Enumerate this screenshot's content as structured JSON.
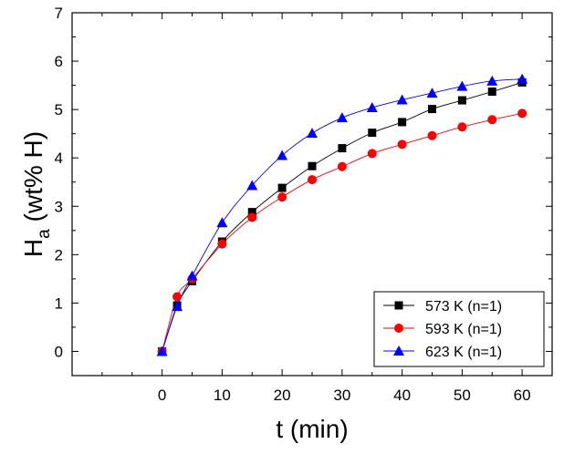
{
  "chart_data": {
    "type": "line",
    "xlabel": "t (min)",
    "ylabel_main": "H",
    "ylabel_sub": "a",
    "ylabel_rest": " (wt% H)",
    "xlim": [
      -15,
      65
    ],
    "ylim": [
      -0.5,
      7
    ],
    "xticks": [
      0,
      10,
      20,
      30,
      40,
      50,
      60
    ],
    "yticks": [
      0,
      1,
      2,
      3,
      4,
      5,
      6,
      7
    ],
    "legend_position": "bottom-right",
    "series": [
      {
        "name": "573 K (n=1)",
        "color": "#000000",
        "marker": "square",
        "x": [
          0,
          2.5,
          5,
          10,
          15,
          20,
          25,
          30,
          35,
          40,
          45,
          50,
          55,
          60
        ],
        "y": [
          0,
          0.95,
          1.45,
          2.27,
          2.88,
          3.38,
          3.83,
          4.2,
          4.52,
          4.74,
          5.01,
          5.19,
          5.37,
          5.56
        ]
      },
      {
        "name": "593 K (n=1)",
        "color": "#ff0000",
        "marker": "circle",
        "x": [
          0,
          2.5,
          5,
          10,
          15,
          20,
          25,
          30,
          35,
          40,
          45,
          50,
          55,
          60
        ],
        "y": [
          0,
          1.13,
          1.5,
          2.22,
          2.77,
          3.19,
          3.55,
          3.82,
          4.09,
          4.28,
          4.46,
          4.64,
          4.79,
          4.92
        ]
      },
      {
        "name": "623 K (n=1)",
        "color": "#0000ff",
        "marker": "triangle",
        "x": [
          0,
          2.5,
          5,
          10,
          15,
          20,
          25,
          30,
          35,
          40,
          45,
          50,
          55,
          60
        ],
        "y": [
          0,
          0.93,
          1.56,
          2.66,
          3.43,
          4.05,
          4.51,
          4.83,
          5.04,
          5.2,
          5.34,
          5.48,
          5.59,
          5.63
        ]
      }
    ]
  }
}
